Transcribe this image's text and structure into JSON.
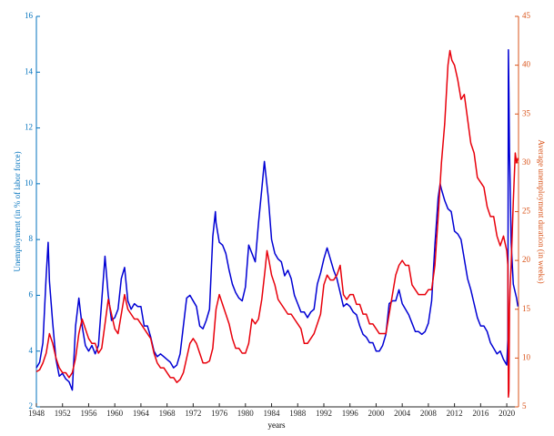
{
  "chart_data": {
    "type": "line",
    "xlabel": "years",
    "ylabel": "Unemployment (in % of labor force)",
    "y2label": "Average unemployment duration (in weeks)",
    "xlim": [
      1948,
      2021.8
    ],
    "xticks": [
      1948,
      1952,
      1956,
      1960,
      1964,
      1968,
      1972,
      1976,
      1980,
      1984,
      1988,
      1992,
      1996,
      2000,
      2004,
      2008,
      2012,
      2016,
      2020
    ],
    "ylim": [
      2,
      16
    ],
    "yticks": [
      2,
      4,
      6,
      8,
      10,
      12,
      14,
      16
    ],
    "y2lim": [
      5,
      45
    ],
    "y2ticks": [
      5,
      10,
      15,
      20,
      25,
      30,
      35,
      40,
      45
    ],
    "ycolor": "#0072bd",
    "y2color": "#d95319",
    "grid": false,
    "series": [
      {
        "color": "#0000d4",
        "x": [
          1948,
          1948.5,
          1949,
          1949.5,
          1949.8,
          1950,
          1950.5,
          1951,
          1951.5,
          1952,
          1952.5,
          1953,
          1953.5,
          1954,
          1954.5,
          1955,
          1955.5,
          1956,
          1956.5,
          1957,
          1957.5,
          1958,
          1958.5,
          1959,
          1959.5,
          1960,
          1960.5,
          1961,
          1961.5,
          1962,
          1962.5,
          1963,
          1963.5,
          1964,
          1964.5,
          1965,
          1965.5,
          1966,
          1966.5,
          1967,
          1967.5,
          1968,
          1968.5,
          1969,
          1969.5,
          1970,
          1970.5,
          1971,
          1971.5,
          1972,
          1972.5,
          1973,
          1973.5,
          1974,
          1974.5,
          1975,
          1975.4,
          1975.5,
          1976,
          1976.5,
          1977,
          1977.5,
          1978,
          1978.5,
          1979,
          1979.5,
          1980,
          1980.5,
          1981,
          1981.5,
          1982,
          1982.5,
          1982.9,
          1983.5,
          1984,
          1984.5,
          1985,
          1985.5,
          1986,
          1986.5,
          1987,
          1987.5,
          1988,
          1988.5,
          1989,
          1989.5,
          1990,
          1990.5,
          1991,
          1991.5,
          1992,
          1992.5,
          1993,
          1993.5,
          1994,
          1994.5,
          1995,
          1995.5,
          1996,
          1996.5,
          1997,
          1997.5,
          1998,
          1998.5,
          1999,
          1999.5,
          2000,
          2000.5,
          2001,
          2001.5,
          2002,
          2002.5,
          2003,
          2003.5,
          2004,
          2004.5,
          2005,
          2005.5,
          2006,
          2006.5,
          2007,
          2007.5,
          2008,
          2008.5,
          2009,
          2009.5,
          2009.8,
          2010,
          2010.5,
          2011,
          2011.5,
          2012,
          2012.5,
          2013,
          2013.5,
          2014,
          2014.5,
          2015,
          2015.5,
          2016,
          2016.5,
          2017,
          2017.5,
          2018,
          2018.5,
          2019,
          2019.5,
          2020,
          2020.17,
          2020.25,
          2020.33,
          2020.42,
          2020.5,
          2020.67,
          2021,
          2021.5,
          2021.7
        ],
        "values": [
          3.4,
          3.6,
          4.3,
          6.7,
          7.9,
          6.5,
          5.0,
          3.7,
          3.1,
          3.2,
          3.0,
          2.9,
          2.6,
          4.9,
          5.9,
          4.9,
          4.2,
          4.0,
          4.2,
          3.9,
          4.2,
          5.8,
          7.4,
          6.0,
          5.1,
          5.2,
          5.5,
          6.6,
          7.0,
          5.8,
          5.5,
          5.7,
          5.6,
          5.6,
          4.9,
          4.9,
          4.5,
          4.0,
          3.8,
          3.9,
          3.8,
          3.7,
          3.6,
          3.4,
          3.5,
          3.9,
          4.9,
          5.9,
          6.0,
          5.8,
          5.6,
          4.9,
          4.8,
          5.1,
          5.5,
          8.1,
          9.0,
          8.6,
          7.9,
          7.8,
          7.5,
          6.9,
          6.4,
          6.1,
          5.9,
          5.8,
          6.3,
          7.8,
          7.5,
          7.2,
          8.6,
          9.8,
          10.8,
          9.5,
          8.0,
          7.5,
          7.3,
          7.2,
          6.7,
          6.9,
          6.6,
          6.0,
          5.7,
          5.4,
          5.4,
          5.2,
          5.4,
          5.5,
          6.4,
          6.8,
          7.3,
          7.7,
          7.3,
          6.9,
          6.6,
          6.1,
          5.6,
          5.7,
          5.6,
          5.4,
          5.3,
          4.9,
          4.6,
          4.5,
          4.3,
          4.3,
          4.0,
          4.0,
          4.2,
          4.6,
          5.7,
          5.8,
          5.8,
          6.2,
          5.7,
          5.5,
          5.3,
          5.0,
          4.7,
          4.7,
          4.6,
          4.7,
          5.0,
          5.8,
          7.8,
          9.5,
          10.0,
          9.8,
          9.4,
          9.1,
          9.0,
          8.3,
          8.2,
          8.0,
          7.3,
          6.6,
          6.2,
          5.7,
          5.2,
          4.9,
          4.9,
          4.7,
          4.3,
          4.1,
          3.9,
          4.0,
          3.7,
          3.5,
          4.4,
          14.8,
          13.3,
          11.1,
          10.2,
          7.9,
          6.4,
          5.9,
          5.6
        ]
      },
      {
        "color": "#e8000b",
        "axis": "y2",
        "x": [
          1948,
          1948.5,
          1949,
          1949.5,
          1950,
          1950.5,
          1951,
          1951.5,
          1952,
          1952.5,
          1953,
          1953.5,
          1954,
          1954.5,
          1955,
          1955.5,
          1956,
          1956.5,
          1957,
          1957.5,
          1958,
          1958.5,
          1959,
          1959.5,
          1960,
          1960.5,
          1961,
          1961.5,
          1962,
          1962.5,
          1963,
          1963.5,
          1964,
          1964.5,
          1965,
          1965.5,
          1966,
          1966.5,
          1967,
          1967.5,
          1968,
          1968.5,
          1969,
          1969.5,
          1970,
          1970.5,
          1971,
          1971.5,
          1972,
          1972.5,
          1973,
          1973.5,
          1974,
          1974.5,
          1975,
          1975.5,
          1976,
          1976.5,
          1977,
          1977.5,
          1978,
          1978.5,
          1979,
          1979.5,
          1980,
          1980.5,
          1981,
          1981.5,
          1982,
          1982.5,
          1983,
          1983.3,
          1983.6,
          1984,
          1984.5,
          1985,
          1985.5,
          1986,
          1986.5,
          1987,
          1987.5,
          1988,
          1988.5,
          1989,
          1989.5,
          1990,
          1990.5,
          1991,
          1991.5,
          1992,
          1992.5,
          1993,
          1993.5,
          1994,
          1994.5,
          1995,
          1995.5,
          1996,
          1996.5,
          1997,
          1997.5,
          1998,
          1998.5,
          1999,
          1999.5,
          2000,
          2000.5,
          2001,
          2001.5,
          2002,
          2002.5,
          2003,
          2003.5,
          2004,
          2004.5,
          2005,
          2005.5,
          2006,
          2006.5,
          2007,
          2007.5,
          2008,
          2008.5,
          2009,
          2009.5,
          2010,
          2010.5,
          2011,
          2011.3,
          2011.6,
          2012,
          2012.5,
          2013,
          2013.5,
          2014,
          2014.5,
          2015,
          2015.5,
          2016,
          2016.5,
          2017,
          2017.5,
          2018,
          2018.5,
          2019,
          2019.5,
          2020,
          2020.17,
          2020.25,
          2020.33,
          2020.42,
          2020.5,
          2020.67,
          2021,
          2021.3,
          2021.5,
          2021.7
        ],
        "values": [
          8.6,
          8.8,
          9.5,
          10.5,
          12.5,
          11.5,
          10.0,
          9.0,
          8.5,
          8.5,
          8.0,
          8.5,
          10.0,
          12.5,
          14.0,
          13.0,
          12.0,
          11.5,
          11.5,
          10.5,
          11.0,
          13.5,
          16.0,
          14.5,
          13.0,
          12.5,
          14.5,
          16.5,
          15.0,
          14.5,
          14.0,
          14.0,
          13.5,
          13.0,
          12.5,
          12.0,
          10.5,
          9.5,
          9.0,
          9.0,
          8.5,
          8.0,
          8.0,
          7.5,
          7.8,
          8.5,
          10.0,
          11.5,
          12.0,
          11.5,
          10.5,
          9.5,
          9.5,
          9.7,
          11.0,
          15.0,
          16.5,
          15.5,
          14.5,
          13.5,
          12.0,
          11.0,
          11.0,
          10.5,
          10.5,
          11.5,
          14.0,
          13.5,
          14.0,
          16.0,
          19.0,
          21.0,
          20.0,
          18.5,
          17.5,
          16.0,
          15.5,
          15.0,
          14.5,
          14.5,
          14.0,
          13.5,
          13.0,
          11.5,
          11.5,
          12.0,
          12.5,
          13.5,
          14.5,
          17.5,
          18.5,
          18.0,
          18.0,
          18.5,
          19.5,
          16.5,
          16.0,
          16.5,
          16.5,
          15.5,
          15.5,
          14.5,
          14.5,
          13.5,
          13.5,
          13.0,
          12.5,
          12.5,
          12.5,
          14.5,
          16.5,
          18.5,
          19.5,
          20.0,
          19.5,
          19.5,
          17.5,
          17.0,
          16.5,
          16.5,
          16.5,
          17.0,
          17.0,
          19.5,
          24.5,
          30.0,
          34.0,
          40.0,
          41.5,
          40.5,
          40.0,
          38.5,
          36.5,
          37.0,
          34.5,
          32.0,
          31.0,
          28.5,
          28.0,
          27.5,
          25.5,
          24.5,
          24.5,
          22.5,
          21.5,
          22.5,
          21.0,
          19.5,
          6.0,
          6.6,
          15.0,
          17.0,
          19.5,
          26.0,
          31.0,
          30.0,
          30.5
        ]
      }
    ]
  }
}
